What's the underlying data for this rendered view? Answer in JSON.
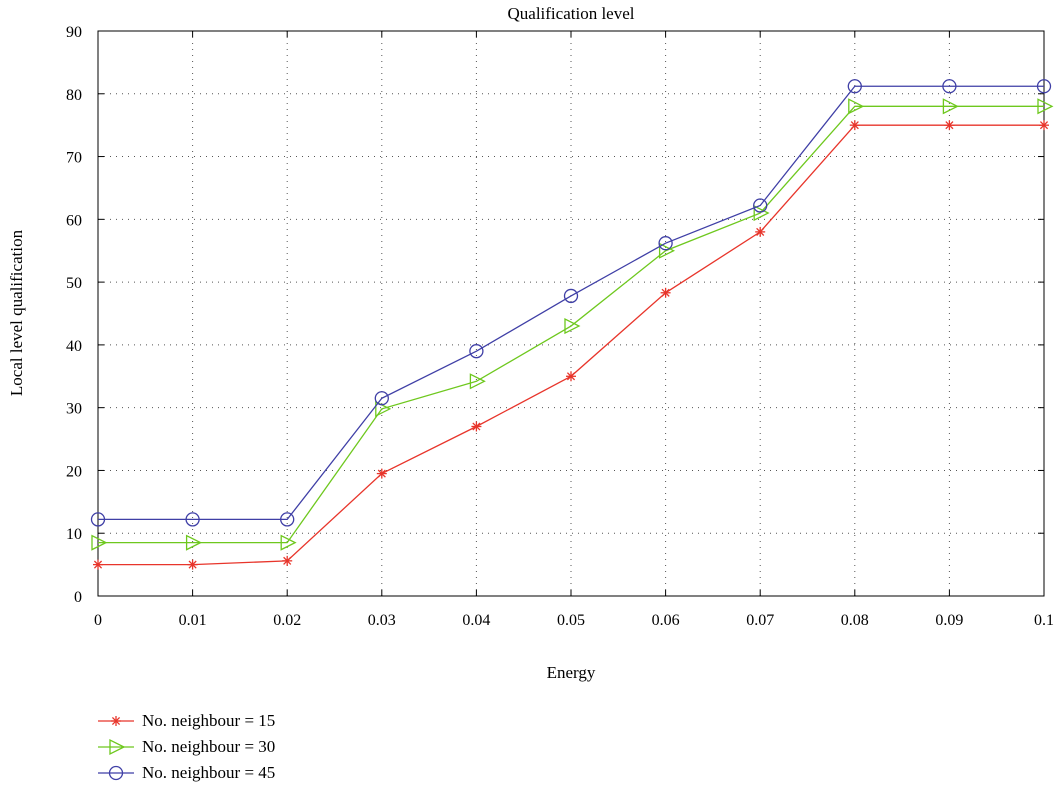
{
  "chart_data": {
    "type": "line",
    "title": "Qualification level",
    "xlabel": "Energy",
    "ylabel": "Local level qualification",
    "x": [
      0,
      0.01,
      0.02,
      0.03,
      0.04,
      0.05,
      0.06,
      0.07,
      0.08,
      0.09,
      0.1
    ],
    "x_tick_labels": [
      "0",
      "0.01",
      "0.02",
      "0.03",
      "0.04",
      "0.05",
      "0.06",
      "0.07",
      "0.08",
      "0.09",
      "0.1"
    ],
    "y_ticks": [
      0,
      10,
      20,
      30,
      40,
      50,
      60,
      70,
      80,
      90
    ],
    "xlim": [
      0,
      0.1
    ],
    "ylim": [
      0,
      90
    ],
    "grid": "dotted",
    "legend_position": "bottom-left, below plot",
    "series": [
      {
        "name": "No. neighbour = 15",
        "color": "#e8352b",
        "marker": "asterisk",
        "values": [
          5,
          5,
          5.6,
          19.5,
          27,
          35,
          48.3,
          58,
          75,
          75,
          75
        ]
      },
      {
        "name": "No. neighbour = 30",
        "color": "#6ec81e",
        "marker": "triangle-right",
        "values": [
          8.5,
          8.5,
          8.5,
          29.8,
          34.2,
          43,
          55,
          61,
          78,
          78,
          78
        ]
      },
      {
        "name": "No. neighbour = 45",
        "color": "#3f3fa6",
        "marker": "circle",
        "values": [
          12.2,
          12.2,
          12.2,
          31.5,
          39,
          47.8,
          56.2,
          62.2,
          81.2,
          81.2,
          81.2
        ]
      }
    ]
  }
}
